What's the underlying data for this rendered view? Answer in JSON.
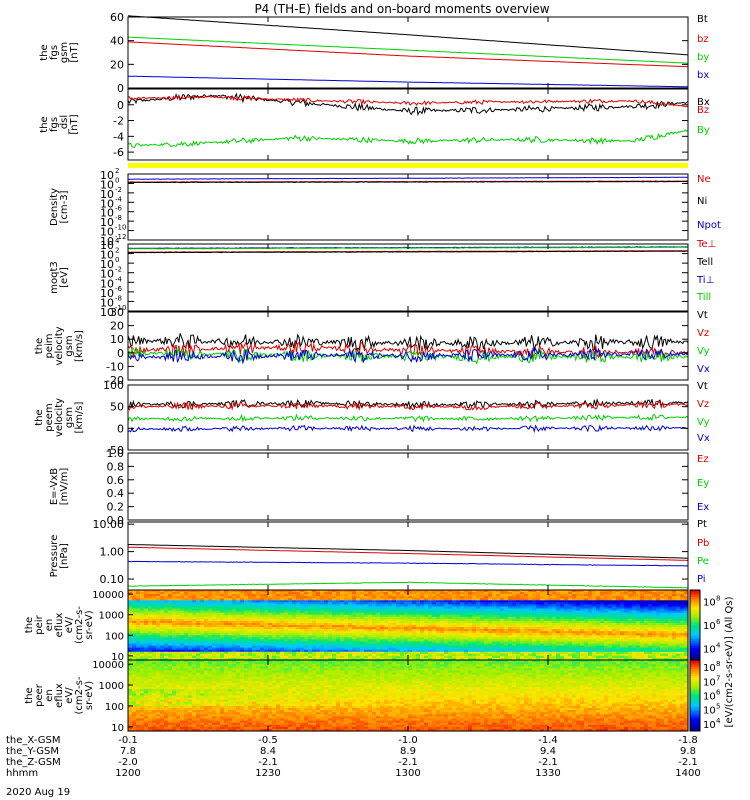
{
  "title": "P4 (TH-E) fields and on-board moments overview",
  "date": "2020 Aug 19",
  "colors": {
    "black": "#000000",
    "red": "#e00000",
    "green": "#00d000",
    "blue": "#0000d0",
    "yellow": "#ffff00",
    "teal": "#00a050"
  },
  "colorbar_label": "[eV/(cm2-s-sr-eV)] (All Qs)",
  "chart_data": [
    {
      "type": "line",
      "id": "fgs",
      "ylabel": [
        "the",
        "fgs",
        "gsm",
        "[nT]"
      ],
      "ylim": [
        0,
        60
      ],
      "yticks": [
        "0",
        "20",
        "40",
        "60"
      ],
      "legend": [
        "Bt",
        "bz",
        "by",
        "bx"
      ],
      "series": [
        {
          "name": "Bt",
          "color": "black",
          "x": [
            0,
            0.5,
            1
          ],
          "values": [
            61,
            45,
            28
          ],
          "noise": 0
        },
        {
          "name": "bz",
          "color": "red",
          "x": [
            0,
            0.5,
            1
          ],
          "values": [
            39,
            27,
            18
          ],
          "noise": 0
        },
        {
          "name": "by",
          "color": "green",
          "x": [
            0,
            0.5,
            1
          ],
          "values": [
            43,
            32,
            21
          ],
          "noise": 0
        },
        {
          "name": "bx",
          "color": "blue",
          "x": [
            0,
            0.5,
            1
          ],
          "values": [
            10,
            5,
            1
          ],
          "noise": 0
        }
      ]
    },
    {
      "type": "line",
      "id": "fgs_dsl",
      "ylabel": [
        "the",
        "fgs",
        "_dsl",
        "[nT]"
      ],
      "ylim": [
        -7,
        2
      ],
      "yticks": [
        "-6",
        "-4",
        "-2",
        "0"
      ],
      "legend": [
        "Bx",
        "Bz",
        "By"
      ],
      "series": [
        {
          "name": "Bx",
          "color": "black",
          "x": [
            0,
            0.15,
            0.3,
            0.5,
            0.7,
            0.9,
            1
          ],
          "values": [
            0.4,
            1.2,
            0.3,
            -0.8,
            -0.6,
            -0.2,
            0.3
          ],
          "noise": 0.5
        },
        {
          "name": "Bz",
          "color": "red",
          "x": [
            0,
            0.15,
            0.3,
            0.5,
            0.7,
            0.9,
            1
          ],
          "values": [
            0.8,
            1.0,
            0.6,
            0.2,
            0.4,
            0.5,
            -0.2
          ],
          "noise": 0.3
        },
        {
          "name": "By",
          "color": "green",
          "x": [
            0,
            0.15,
            0.3,
            0.5,
            0.7,
            0.9,
            1
          ],
          "values": [
            -5.2,
            -4.8,
            -4.2,
            -4.6,
            -4.4,
            -4.6,
            -3.2
          ],
          "noise": 0.4
        }
      ]
    },
    {
      "type": "line",
      "id": "density",
      "log": true,
      "ylabel": [
        "Density",
        "[cm-3]"
      ],
      "ylim": [
        -12,
        2
      ],
      "yticks": [
        "10-12",
        "10-10",
        "10-8",
        "10-6",
        "10-4",
        "10-2",
        "100",
        "102"
      ],
      "legend": [
        "Ne",
        "Ni",
        "Npot"
      ],
      "series": [
        {
          "name": "Ne",
          "color": "red",
          "x": [
            0,
            1
          ],
          "values": [
            0.3,
            0.5
          ],
          "noise": 0.05
        },
        {
          "name": "Ni",
          "color": "black",
          "x": [
            0,
            1
          ],
          "values": [
            0.2,
            0.4
          ],
          "noise": 0.05
        },
        {
          "name": "Npot",
          "color": "blue",
          "x": [
            0,
            1
          ],
          "values": [
            0.9,
            1.3
          ],
          "noise": 0.03
        }
      ]
    },
    {
      "type": "line",
      "id": "temp",
      "log": true,
      "ylabel": [
        "moqt3",
        "[eV]"
      ],
      "ylim": [
        -10,
        4
      ],
      "yticks": [
        "10-10",
        "10-8",
        "10-6",
        "10-4",
        "10-2",
        "100",
        "102",
        "104"
      ],
      "legend": [
        "Te⊥",
        "Tell",
        "Ti⊥",
        "Till"
      ],
      "series": [
        {
          "name": "Te⊥",
          "color": "red",
          "x": [
            0,
            1
          ],
          "values": [
            2.3,
            2.6
          ],
          "noise": 0.05
        },
        {
          "name": "Tell",
          "color": "black",
          "x": [
            0,
            1
          ],
          "values": [
            2.2,
            2.5
          ],
          "noise": 0.05
        },
        {
          "name": "Ti⊥",
          "color": "blue",
          "x": [
            0,
            1
          ],
          "values": [
            3.1,
            3.4
          ],
          "noise": 0.06
        },
        {
          "name": "Till",
          "color": "green",
          "x": [
            0,
            1
          ],
          "values": [
            3.0,
            3.3
          ],
          "noise": 0.06
        }
      ]
    },
    {
      "type": "line",
      "id": "peim",
      "ylabel": [
        "the",
        "peim",
        "velocity",
        "gsm",
        "[km/s]"
      ],
      "ylim": [
        -20,
        30
      ],
      "yticks": [
        "-20",
        "-10",
        "0",
        "10",
        "20",
        "30"
      ],
      "legend": [
        "Vt",
        "Vz",
        "Vy",
        "Vx"
      ],
      "series": [
        {
          "name": "Vt",
          "color": "black",
          "x": [
            0,
            0.3,
            0.6,
            1
          ],
          "values": [
            9,
            8,
            7,
            8
          ],
          "noise": 6
        },
        {
          "name": "Vz",
          "color": "red",
          "x": [
            0,
            0.3,
            0.6,
            1
          ],
          "values": [
            2,
            4,
            1,
            0
          ],
          "noise": 5
        },
        {
          "name": "Vy",
          "color": "green",
          "x": [
            0,
            0.3,
            0.6,
            1
          ],
          "values": [
            0,
            -2,
            -3,
            -3
          ],
          "noise": 5
        },
        {
          "name": "Vx",
          "color": "blue",
          "x": [
            0,
            0.3,
            0.6,
            1
          ],
          "values": [
            -3,
            -2,
            -2,
            -1
          ],
          "noise": 5
        }
      ]
    },
    {
      "type": "line",
      "id": "peem",
      "ylabel": [
        "the",
        "peem",
        "velocity",
        "gsm",
        "[km/s]"
      ],
      "ylim": [
        -50,
        100
      ],
      "yticks": [
        "-50",
        "0",
        "50",
        "100"
      ],
      "legend": [
        "Vt",
        "Vz",
        "Vy",
        "Vx"
      ],
      "series": [
        {
          "name": "Vt",
          "color": "black",
          "x": [
            0,
            0.3,
            0.6,
            1
          ],
          "values": [
            55,
            58,
            54,
            60
          ],
          "noise": 9
        },
        {
          "name": "Vz",
          "color": "red",
          "x": [
            0,
            0.3,
            0.6,
            1
          ],
          "values": [
            50,
            52,
            50,
            55
          ],
          "noise": 9
        },
        {
          "name": "Vy",
          "color": "green",
          "x": [
            0,
            0.3,
            0.6,
            1
          ],
          "values": [
            22,
            24,
            22,
            26
          ],
          "noise": 7
        },
        {
          "name": "Vx",
          "color": "blue",
          "x": [
            0,
            0.3,
            0.6,
            1
          ],
          "values": [
            -2,
            0,
            -1,
            1
          ],
          "noise": 7
        }
      ]
    },
    {
      "type": "line",
      "id": "efield",
      "ylabel": [
        "E=-VxB",
        "[mV/m]"
      ],
      "ylim": [
        0,
        1
      ],
      "yticks": [
        "0.0",
        "0.2",
        "0.4",
        "0.6",
        "0.8",
        "1.0"
      ],
      "legend": [
        "Ez",
        "Ey",
        "Ex"
      ],
      "series": []
    },
    {
      "type": "line",
      "id": "pressure",
      "log": true,
      "ylabel": [
        "Pressure",
        "[nPa]"
      ],
      "ylim": [
        -1.4,
        1.08
      ],
      "yticks": [
        "0.10",
        "1.00",
        "10.00"
      ],
      "legend": [
        "Pt",
        "Pb",
        "Pe",
        "Pi"
      ],
      "series": [
        {
          "name": "Pt",
          "color": "black",
          "x": [
            0,
            0.5,
            1
          ],
          "values": [
            0.26,
            0.04,
            -0.24
          ],
          "noise": 0
        },
        {
          "name": "Pb",
          "color": "red",
          "x": [
            0,
            0.5,
            1
          ],
          "values": [
            0.16,
            -0.07,
            -0.32
          ],
          "noise": 0
        },
        {
          "name": "Pe",
          "color": "green",
          "x": [
            0,
            0.5,
            1
          ],
          "values": [
            -1.26,
            -1.12,
            -1.32
          ],
          "noise": 0.01
        },
        {
          "name": "Pi",
          "color": "blue",
          "x": [
            0,
            0.5,
            1
          ],
          "values": [
            -0.36,
            -0.42,
            -0.52
          ],
          "noise": 0.01
        }
      ]
    },
    {
      "type": "heatmap",
      "id": "peir_eflux",
      "ylabel": [
        "the",
        "peir",
        "en",
        "eflux",
        "eV/",
        "(cm2-s-",
        "sr-eV)"
      ],
      "ylim": [
        0.8,
        4.2
      ],
      "yticks": [
        "10",
        "100",
        "1000",
        "10000"
      ],
      "colorbar_ticks": [
        "104",
        "106",
        "108"
      ]
    },
    {
      "type": "heatmap",
      "id": "peer_eflux",
      "ylabel": [
        "the",
        "peer",
        "en",
        "eflux",
        "eV/",
        "(cm2-s-",
        "sr-eV)"
      ],
      "ylim": [
        0.8,
        4.2
      ],
      "yticks": [
        "10",
        "100",
        "1000",
        "10000"
      ],
      "colorbar_ticks": [
        "104",
        "105",
        "106",
        "107",
        "108"
      ]
    }
  ],
  "xaxis": {
    "row_labels": [
      "the_X-GSM",
      "the_Y-GSM",
      "the_Z-GSM",
      "hhmm"
    ],
    "ticks": [
      {
        "pos": 0.0,
        "values": [
          "-0.1",
          "7.8",
          "-2.0",
          "1200"
        ]
      },
      {
        "pos": 0.25,
        "values": [
          "-0.5",
          "8.4",
          "-2.1",
          "1230"
        ]
      },
      {
        "pos": 0.5,
        "values": [
          "-1.0",
          "8.9",
          "-2.1",
          "1300"
        ]
      },
      {
        "pos": 0.75,
        "values": [
          "-1.4",
          "9.4",
          "-2.1",
          "1330"
        ]
      },
      {
        "pos": 1.0,
        "values": [
          "-1.8",
          "9.8",
          "-2.1",
          "1400"
        ]
      }
    ]
  }
}
